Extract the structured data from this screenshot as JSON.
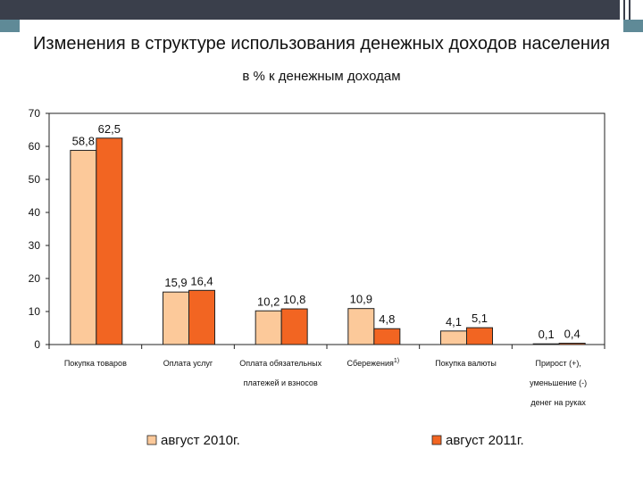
{
  "title": "Изменения в структуре использования денежных доходов населения",
  "subtitle": "в % к денежным доходам",
  "chart_data": {
    "type": "bar",
    "categories": [
      [
        "Покупка товаров"
      ],
      [
        "Оплата услуг"
      ],
      [
        "Оплата обязательных",
        "платежей и взносов"
      ],
      [
        "Сбережения"
      ],
      [
        "Покупка валюты"
      ],
      [
        "Прирост (+),",
        "уменьшение (-)",
        "денег на руках"
      ]
    ],
    "category_footnote": "1)",
    "series": [
      {
        "name": "август 2010г.",
        "values": [
          58.8,
          15.9,
          10.2,
          10.9,
          4.1,
          0.1
        ],
        "labels": [
          "58,8",
          "15,9",
          "10,2",
          "10,9",
          "4,1",
          "0,1"
        ],
        "color": "#fcc99a"
      },
      {
        "name": "август 2011г.",
        "values": [
          62.5,
          16.4,
          10.8,
          4.8,
          5.1,
          0.4
        ],
        "labels": [
          "62,5",
          "16,4",
          "10,8",
          "4,8",
          "5,1",
          "0,4"
        ],
        "color": "#f26522"
      }
    ],
    "ylim": [
      0,
      70
    ],
    "yticks": [
      0,
      10,
      20,
      30,
      40,
      50,
      60,
      70
    ],
    "grid": false,
    "legend_position": "bottom"
  }
}
